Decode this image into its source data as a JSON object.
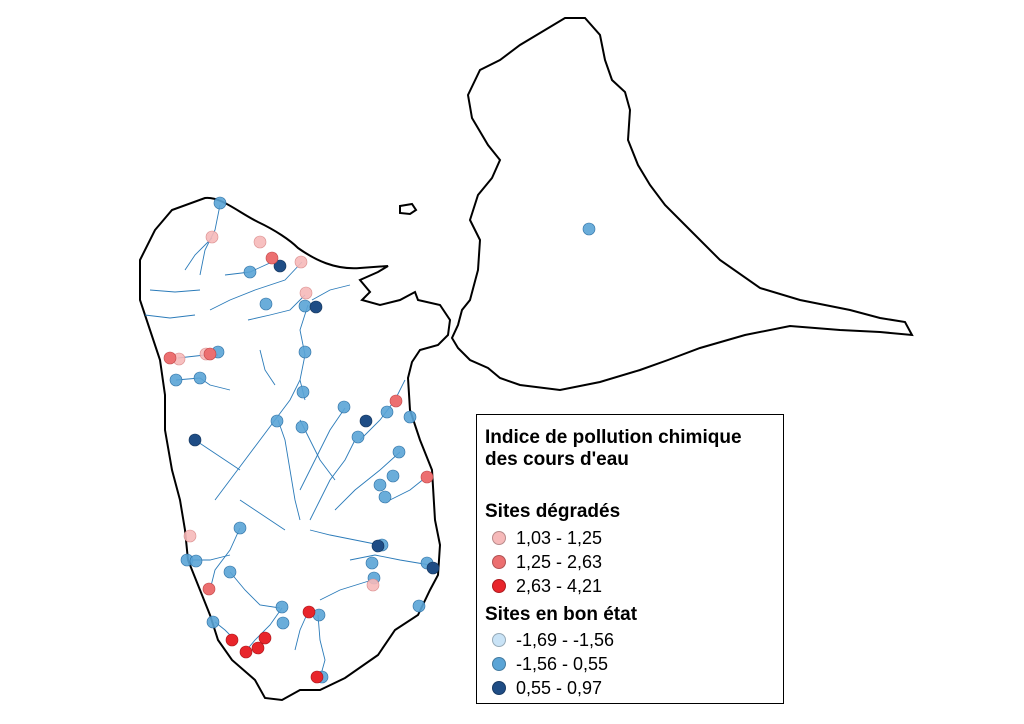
{
  "legend": {
    "title_line1": "Indice de pollution chimique",
    "title_line2": "des cours d'eau",
    "degraded_title": "Sites dégradés",
    "good_title": "Sites en bon état",
    "degraded": [
      {
        "label": "1,03 - 1,25",
        "color": "#f6b9b9"
      },
      {
        "label": "1,25 - 2,63",
        "color": "#ec6f70"
      },
      {
        "label": "2,63 - 4,21",
        "color": "#e8252b"
      }
    ],
    "good": [
      {
        "label": "-1,69 - -1,56",
        "color": "#c9e3f6"
      },
      {
        "label": "-1,56 - 0,55",
        "color": "#5aa4d6"
      },
      {
        "label": "0,55 - 0,97",
        "color": "#1f4d85"
      }
    ]
  },
  "colors": {
    "coast": "#000000",
    "river": "#2b7bb9"
  }
}
